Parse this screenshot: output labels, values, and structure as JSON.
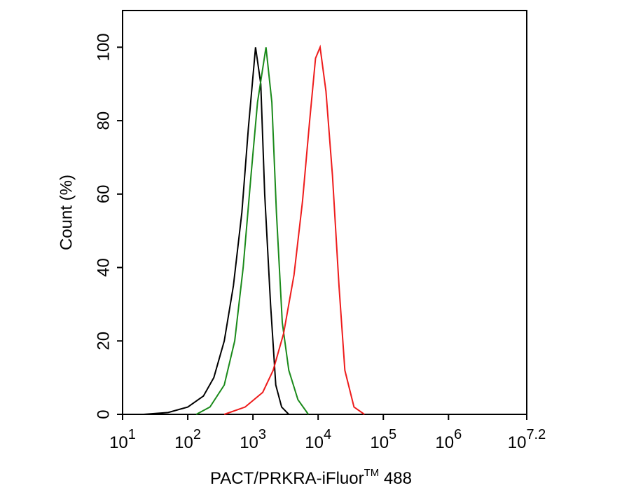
{
  "chart_data": {
    "type": "line",
    "x_label": {
      "text": "PACT/PRKRA-iFluor",
      "superscript": "TM",
      "suffix": " 488"
    },
    "y_label": "Count  (%)",
    "log_x": true,
    "xlim": [
      10,
      15848932
    ],
    "ylim": [
      0,
      110
    ],
    "xticks": [
      {
        "value": 10,
        "label": "10",
        "superscript": "1"
      },
      {
        "value": 100,
        "label": "10",
        "superscript": "2"
      },
      {
        "value": 1000,
        "label": "10",
        "superscript": "3"
      },
      {
        "value": 10000,
        "label": "10",
        "superscript": "4"
      },
      {
        "value": 100000,
        "label": "10",
        "superscript": "5"
      },
      {
        "value": 1000000,
        "label": "10",
        "superscript": "6"
      },
      {
        "value": 15848932,
        "label": "10",
        "superscript": "7.2"
      }
    ],
    "yticks": [
      0,
      20,
      40,
      60,
      80,
      100
    ],
    "series": [
      {
        "color": "#000000",
        "x": [
          21,
          50,
          100,
          174,
          251,
          363,
          501,
          676,
          851,
          1096,
          1318,
          1514,
          1862,
          2239,
          2754,
          3548
        ],
        "values": [
          0,
          0.5,
          2,
          5,
          10,
          20,
          35,
          55,
          78,
          100,
          90,
          60,
          30,
          8,
          2,
          0
        ]
      },
      {
        "color": "#1a8a1a",
        "x": [
          135,
          219,
          363,
          525,
          708,
          933,
          1175,
          1585,
          1950,
          2291,
          2818,
          3548,
          4898,
          7079
        ],
        "values": [
          0,
          2,
          8,
          20,
          40,
          65,
          85,
          100,
          85,
          55,
          25,
          12,
          4,
          0
        ]
      },
      {
        "color": "#ee1c1c",
        "x": [
          363,
          759,
          1413,
          2042,
          2951,
          4266,
          5754,
          7413,
          9120,
          10715,
          13183,
          16596,
          20893,
          25704,
          35481,
          51286
        ],
        "values": [
          0,
          2,
          6,
          12,
          22,
          38,
          58,
          80,
          97,
          100,
          88,
          65,
          35,
          12,
          2,
          0
        ]
      }
    ]
  }
}
